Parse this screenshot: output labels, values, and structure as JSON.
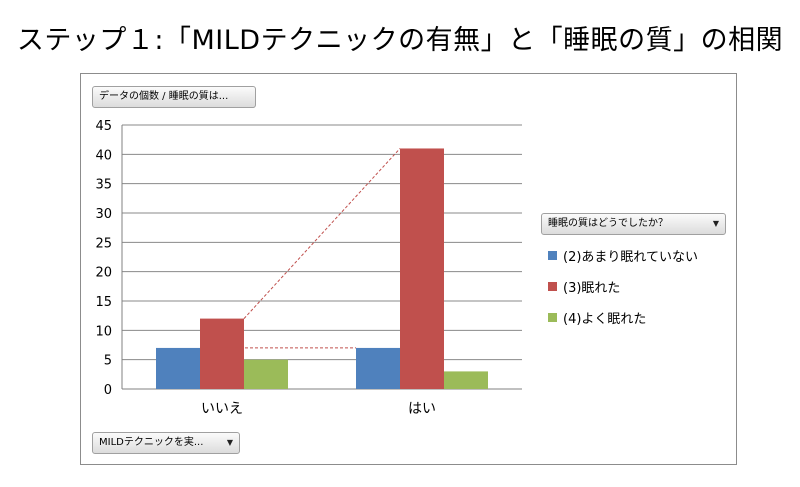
{
  "slide_title": "ステップ１:「MILDテクニックの有無」と「睡眠の質」の相関",
  "values_field_button": "データの個数 / 睡眠の質は...",
  "axis_field_button": "MILDテクニックを実...",
  "legend_field_button": "睡眠の質はどうでしたか？",
  "dropdown_arrow": "▼",
  "chart_data": {
    "type": "bar",
    "categories": [
      "いいえ",
      "はい"
    ],
    "series": [
      {
        "name": "(2)あまり眠れていない",
        "values": [
          7,
          7
        ],
        "color": "#4f81bd"
      },
      {
        "name": "(3)眠れた",
        "values": [
          12,
          41
        ],
        "color": "#c0504d"
      },
      {
        "name": "(4)よく眠れた",
        "values": [
          5,
          3
        ],
        "color": "#9bbb59"
      }
    ],
    "ylim": [
      0,
      45
    ],
    "yticks": [
      0,
      5,
      10,
      15,
      20,
      25,
      30,
      35,
      40,
      45
    ],
    "grid": true,
    "legend_position": "right",
    "series_lines": true,
    "series_line_color": "#c0504d"
  }
}
